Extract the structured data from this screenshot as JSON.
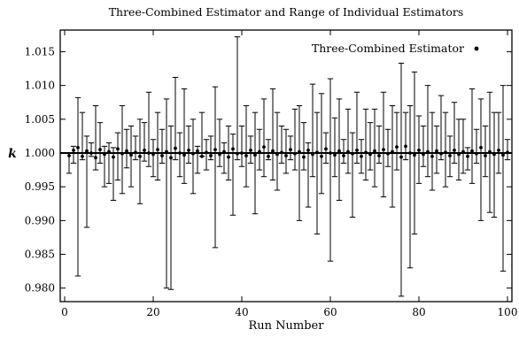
{
  "chart_data": {
    "type": "scatter",
    "title": "Three-Combined Estimator and Range of Individual Estimators",
    "xlabel": "Run Number",
    "ylabel": "k",
    "xlim": [
      -1,
      101
    ],
    "ylim": [
      0.978,
      1.0182
    ],
    "xticks": [
      0,
      20,
      40,
      60,
      80,
      100
    ],
    "yticks": [
      0.98,
      0.985,
      0.99,
      0.995,
      1.0,
      1.005,
      1.01,
      1.015
    ],
    "ytick_labels": [
      "0.980",
      "0.985",
      "0.990",
      "0.995",
      "1.000",
      "1.005",
      "1.010",
      "1.015"
    ],
    "reference_line_y": 1.0,
    "legend": {
      "label": "Three-Combined Estimator",
      "position": "top-right"
    },
    "series": [
      {
        "name": "Three-Combined Estimator",
        "x": [
          1,
          2,
          3,
          4,
          5,
          6,
          7,
          8,
          9,
          10,
          11,
          12,
          13,
          14,
          15,
          16,
          17,
          18,
          19,
          20,
          21,
          22,
          23,
          24,
          25,
          26,
          27,
          28,
          29,
          30,
          31,
          32,
          33,
          34,
          35,
          36,
          37,
          38,
          39,
          40,
          41,
          42,
          43,
          44,
          45,
          46,
          47,
          48,
          49,
          50,
          51,
          52,
          53,
          54,
          55,
          56,
          57,
          58,
          59,
          60,
          61,
          62,
          63,
          64,
          65,
          66,
          67,
          68,
          69,
          70,
          71,
          72,
          73,
          74,
          75,
          76,
          77,
          78,
          79,
          80,
          81,
          82,
          83,
          84,
          85,
          86,
          87,
          88,
          89,
          90,
          91,
          92,
          93,
          94,
          95,
          96,
          97,
          98,
          99,
          100
        ],
        "y": [
          0.9996,
          1.0004,
          1.0008,
          0.9995,
          1.0003,
          1.0,
          0.9993,
          1.0005,
          0.9998,
          1.0002,
          0.9994,
          1.0006,
          0.9999,
          1.0003,
          0.9997,
          1.0001,
          0.9995,
          1.0004,
          1.0,
          0.9998,
          1.0005,
          0.9996,
          1.0002,
          0.9993,
          1.0007,
          1.0,
          0.9997,
          1.0004,
          0.9999,
          1.0003,
          0.9995,
          1.0001,
          0.9996,
          1.0005,
          0.9998,
          1.0002,
          0.9994,
          1.0006,
          0.9999,
          1.0,
          0.9996,
          1.0004,
          0.9997,
          1.0002,
          1.0009,
          0.9995,
          1.0003,
          0.9998,
          1.0001,
          0.9996,
          1.0005,
          0.9999,
          1.0002,
          0.9994,
          1.0004,
          0.9998,
          1.0001,
          0.9995,
          1.0006,
          1.0,
          0.9997,
          1.0003,
          0.9996,
          1.0002,
          0.9999,
          1.0004,
          0.9995,
          1.0001,
          0.9998,
          1.0003,
          0.9996,
          1.0005,
          0.9999,
          1.0002,
          1.0009,
          0.9994,
          1.001,
          1.0,
          0.9997,
          1.0004,
          0.9998,
          1.0002,
          0.9995,
          1.0003,
          0.9999,
          1.0001,
          0.9996,
          1.0004,
          0.9998,
          1.0002,
          0.9995,
          1.0003,
          0.9999,
          1.0008,
          0.9996,
          1.0002,
          0.9998,
          1.0004,
          0.9997,
          1.0001
        ]
      },
      {
        "name": "Range of Individual Estimators",
        "x": [
          1,
          2,
          3,
          4,
          5,
          6,
          7,
          8,
          9,
          10,
          11,
          12,
          13,
          14,
          15,
          16,
          17,
          18,
          19,
          20,
          21,
          22,
          23,
          24,
          25,
          26,
          27,
          28,
          29,
          30,
          31,
          32,
          33,
          34,
          35,
          36,
          37,
          38,
          39,
          40,
          41,
          42,
          43,
          44,
          45,
          46,
          47,
          48,
          49,
          50,
          51,
          52,
          53,
          54,
          55,
          56,
          57,
          58,
          59,
          60,
          61,
          62,
          63,
          64,
          65,
          66,
          67,
          68,
          69,
          70,
          71,
          72,
          73,
          74,
          75,
          76,
          77,
          78,
          79,
          80,
          81,
          82,
          83,
          84,
          85,
          86,
          87,
          88,
          89,
          90,
          91,
          92,
          93,
          94,
          95,
          96,
          97,
          98,
          99,
          100
        ],
        "low": [
          0.997,
          0.9985,
          0.9818,
          0.999,
          0.989,
          0.9995,
          0.9975,
          0.9985,
          0.995,
          0.9955,
          0.993,
          0.996,
          0.994,
          0.9978,
          0.995,
          0.999,
          0.9925,
          0.9988,
          0.998,
          0.9965,
          0.996,
          0.9985,
          0.98,
          0.9798,
          0.999,
          0.9965,
          0.9955,
          0.9985,
          0.994,
          0.997,
          0.9995,
          0.9975,
          0.999,
          0.986,
          0.998,
          0.997,
          0.996,
          0.9908,
          0.999,
          0.998,
          0.995,
          0.9985,
          0.991,
          0.9975,
          0.9965,
          0.999,
          0.996,
          0.9945,
          0.9985,
          0.997,
          0.999,
          0.9975,
          0.99,
          0.9975,
          0.992,
          0.9965,
          0.988,
          0.994,
          0.9985,
          0.984,
          0.9965,
          0.993,
          0.9985,
          0.997,
          0.9905,
          0.9985,
          0.997,
          0.996,
          0.9975,
          0.995,
          0.9985,
          0.9935,
          0.998,
          0.992,
          0.9975,
          0.9788,
          0.999,
          0.983,
          0.988,
          0.9955,
          0.998,
          0.9965,
          0.9945,
          0.997,
          0.999,
          0.995,
          0.9965,
          0.9985,
          0.996,
          0.997,
          0.9975,
          0.9955,
          0.9985,
          0.99,
          0.9965,
          0.9912,
          0.9905,
          0.997,
          0.9825,
          0.999
        ],
        "high": [
          1.0,
          1.001,
          1.0082,
          1.006,
          1.0025,
          1.0015,
          1.007,
          1.0045,
          1.001,
          1.0015,
          1.0008,
          1.003,
          1.007,
          1.0035,
          1.004,
          1.0025,
          1.005,
          1.0045,
          1.009,
          1.002,
          1.006,
          1.0035,
          1.008,
          1.004,
          1.0112,
          1.003,
          1.0095,
          1.004,
          1.005,
          1.001,
          1.006,
          1.002,
          1.0025,
          1.0098,
          1.005,
          1.0015,
          1.004,
          1.0028,
          1.0172,
          1.004,
          1.007,
          1.0025,
          1.006,
          1.0035,
          1.008,
          1.002,
          1.0095,
          1.006,
          1.004,
          1.0035,
          1.0025,
          1.0065,
          1.007,
          1.0045,
          1.0015,
          1.0102,
          1.006,
          1.0088,
          1.003,
          1.011,
          1.0052,
          1.008,
          1.002,
          1.0065,
          1.003,
          1.009,
          1.002,
          1.0065,
          1.0045,
          1.0065,
          1.004,
          1.009,
          1.0035,
          1.007,
          1.006,
          1.0133,
          1.006,
          1.007,
          1.012,
          1.0055,
          1.004,
          1.01,
          1.006,
          1.004,
          1.0085,
          1.006,
          1.0025,
          1.0075,
          1.005,
          1.005,
          1.0008,
          1.0095,
          1.0035,
          1.008,
          1.004,
          1.009,
          1.006,
          1.006,
          1.01,
          1.002
        ]
      }
    ]
  }
}
